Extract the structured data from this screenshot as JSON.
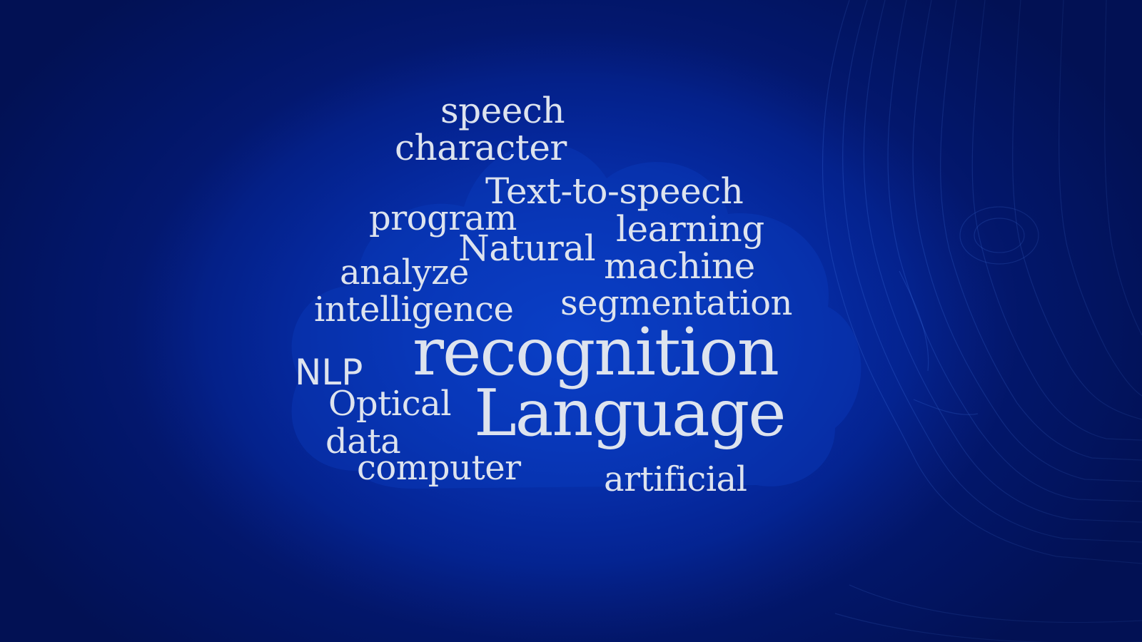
{
  "word_cloud": {
    "words": {
      "speech": "speech",
      "character": "character",
      "text_to_speech": "Text-to-speech",
      "program": "program",
      "learning": "learning",
      "natural": "Natural",
      "analyze": "analyze",
      "machine": "machine",
      "intelligence": "intelligence",
      "segmentation": "segmentation",
      "recognition": "recognition",
      "nlp": "NLP",
      "optical": "Optical",
      "language": "Language",
      "data": "data",
      "computer": "computer",
      "artificial": "artificial"
    },
    "text_color": "#dde3ee",
    "background_color": "#0734b4"
  }
}
